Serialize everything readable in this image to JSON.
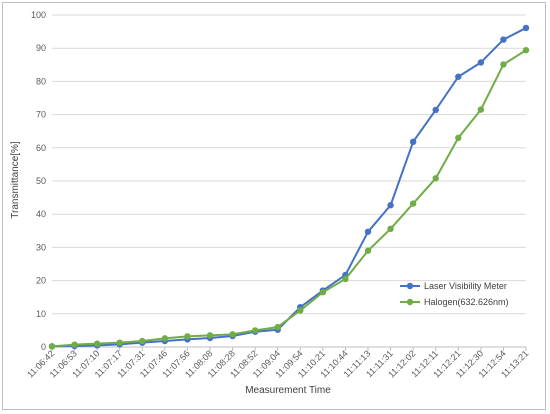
{
  "chart_data": {
    "type": "line",
    "title": "",
    "xlabel": "Measurement Time",
    "ylabel": "Transmittance[%]",
    "ylim": [
      0,
      100
    ],
    "yticks": [
      0,
      10,
      20,
      30,
      40,
      50,
      60,
      70,
      80,
      90,
      100
    ],
    "grid": "horizontal",
    "legend_position": "right-middle",
    "categories": [
      "11:06:42",
      "11:06:53",
      "11:07:10",
      "11:07:17",
      "11:07:31",
      "11:07:46",
      "11:07:56",
      "11:08:08",
      "11:08:28",
      "11:08:52",
      "11:09:04",
      "11:09:54",
      "11:10:21",
      "11:10:44",
      "11:11:13",
      "11:11:31",
      "11:12:02",
      "11:12:11",
      "11:12:21",
      "11:12:30",
      "11:12:54",
      "11:13:21"
    ],
    "series": [
      {
        "name": "Laser Visibility Meter",
        "color": "#4472c4",
        "values": [
          0.2,
          0.3,
          0.5,
          0.8,
          1.3,
          1.8,
          2.3,
          2.7,
          3.3,
          4.6,
          5.2,
          12.0,
          17.0,
          21.7,
          34.7,
          42.7,
          61.8,
          71.4,
          81.4,
          85.7,
          92.6,
          96.1
        ]
      },
      {
        "name": "Halogen(632.626nm)",
        "color": "#70ad47",
        "values": [
          0.2,
          0.7,
          1.0,
          1.3,
          1.8,
          2.6,
          3.2,
          3.5,
          3.8,
          5.0,
          6.0,
          11.0,
          16.5,
          20.5,
          29.0,
          35.6,
          43.2,
          50.8,
          63.0,
          71.5,
          85.1,
          89.4
        ]
      }
    ]
  }
}
